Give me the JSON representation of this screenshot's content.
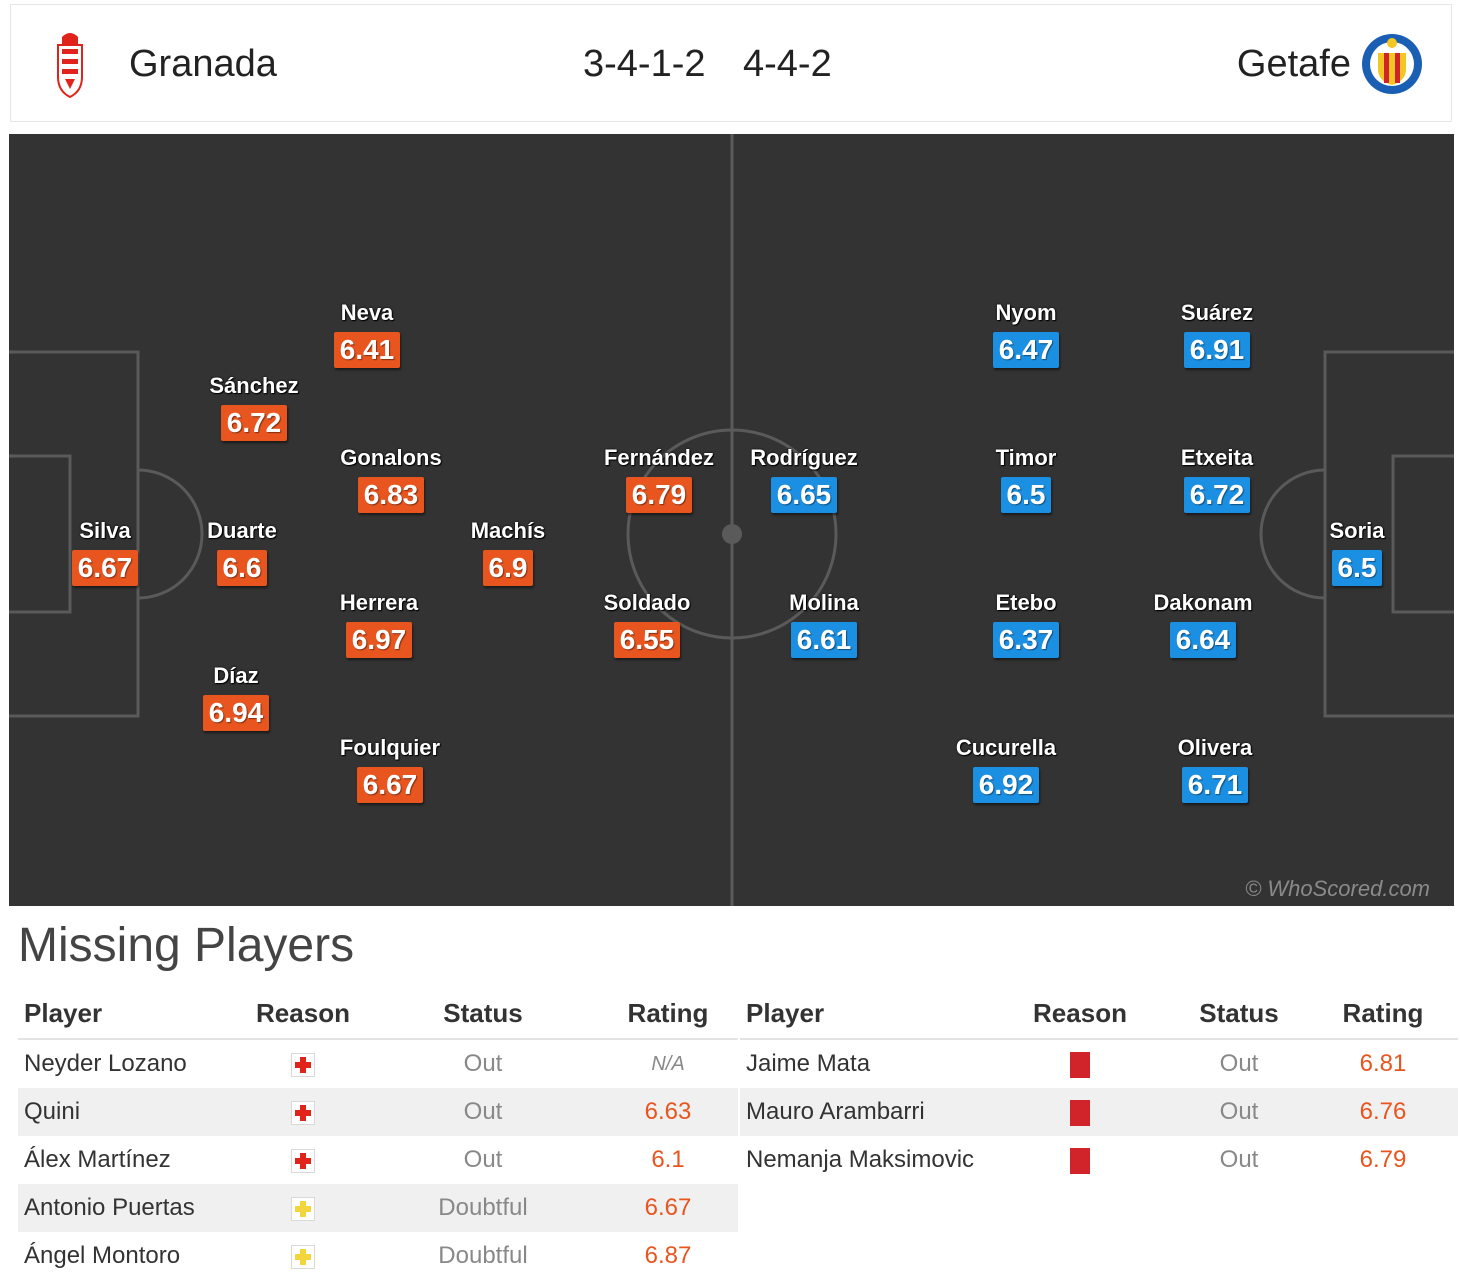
{
  "header": {
    "home_team": "Granada",
    "home_formation": "3-4-1-2",
    "away_formation": "4-4-2",
    "away_team": "Getafe"
  },
  "colors": {
    "pitch": "#333333",
    "home_rating": "#e8551f",
    "away_rating": "#1b8fe2"
  },
  "pitch": {
    "watermark": "© WhoScored.com",
    "home_players": [
      {
        "name": "Silva",
        "rating": "6.67"
      },
      {
        "name": "Sánchez",
        "rating": "6.72"
      },
      {
        "name": "Duarte",
        "rating": "6.6"
      },
      {
        "name": "Díaz",
        "rating": "6.94"
      },
      {
        "name": "Neva",
        "rating": "6.41"
      },
      {
        "name": "Gonalons",
        "rating": "6.83"
      },
      {
        "name": "Herrera",
        "rating": "6.97"
      },
      {
        "name": "Foulquier",
        "rating": "6.67"
      },
      {
        "name": "Machís",
        "rating": "6.9"
      },
      {
        "name": "Fernández",
        "rating": "6.79"
      },
      {
        "name": "Soldado",
        "rating": "6.55"
      }
    ],
    "away_players": [
      {
        "name": "Soria",
        "rating": "6.5"
      },
      {
        "name": "Suárez",
        "rating": "6.91"
      },
      {
        "name": "Etxeita",
        "rating": "6.72"
      },
      {
        "name": "Dakonam",
        "rating": "6.64"
      },
      {
        "name": "Olivera",
        "rating": "6.71"
      },
      {
        "name": "Nyom",
        "rating": "6.47"
      },
      {
        "name": "Timor",
        "rating": "6.5"
      },
      {
        "name": "Etebo",
        "rating": "6.37"
      },
      {
        "name": "Cucurella",
        "rating": "6.92"
      },
      {
        "name": "Rodríguez",
        "rating": "6.65"
      },
      {
        "name": "Molina",
        "rating": "6.61"
      }
    ]
  },
  "missing": {
    "title": "Missing Players",
    "headers": {
      "player": "Player",
      "reason": "Reason",
      "status": "Status",
      "rating": "Rating"
    },
    "home": [
      {
        "player": "Neyder Lozano",
        "reason": "injury-icon",
        "status": "Out",
        "rating": "N/A"
      },
      {
        "player": "Quini",
        "reason": "injury-icon",
        "status": "Out",
        "rating": "6.63"
      },
      {
        "player": "Álex Martínez",
        "reason": "injury-icon",
        "status": "Out",
        "rating": "6.1"
      },
      {
        "player": "Antonio Puertas",
        "reason": "doubtful-injury-icon",
        "status": "Doubtful",
        "rating": "6.67"
      },
      {
        "player": "Ángel Montoro",
        "reason": "doubtful-injury-icon",
        "status": "Doubtful",
        "rating": "6.87"
      }
    ],
    "away": [
      {
        "player": "Jaime Mata",
        "reason": "red-card-icon",
        "status": "Out",
        "rating": "6.81"
      },
      {
        "player": "Mauro Arambarri",
        "reason": "red-card-icon",
        "status": "Out",
        "rating": "6.76"
      },
      {
        "player": "Nemanja Maksimovic",
        "reason": "red-card-icon",
        "status": "Out",
        "rating": "6.79"
      }
    ]
  }
}
